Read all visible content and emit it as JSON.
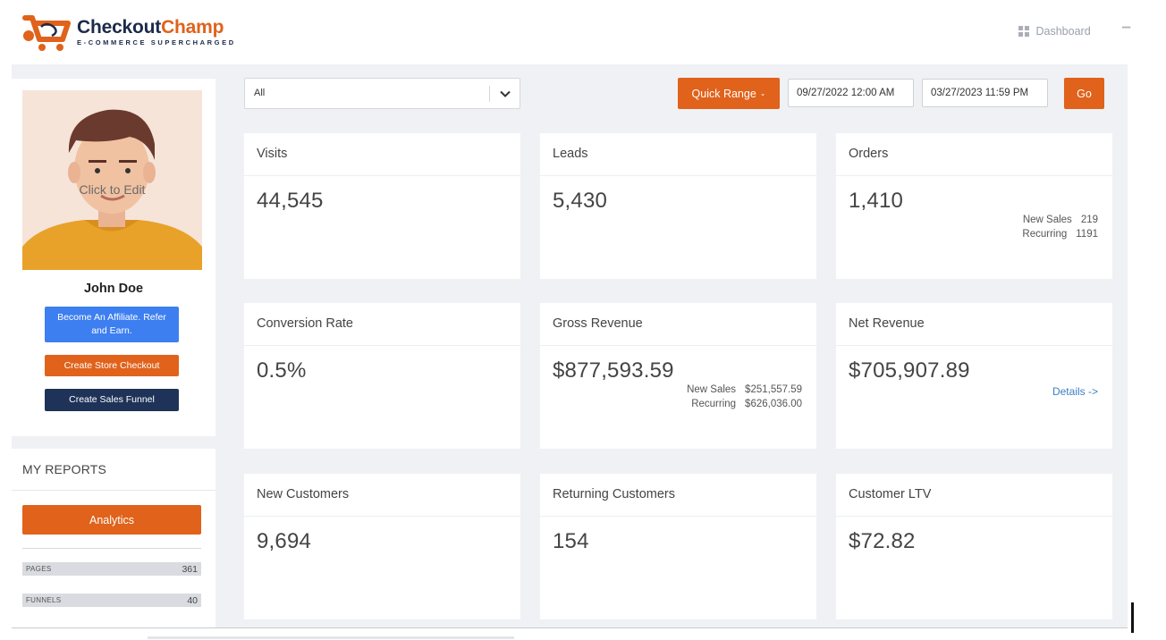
{
  "header": {
    "logo_name_part1": "Checkout",
    "logo_name_part2": "Champ",
    "logo_tagline": "E-COMMERCE SUPERCHARGED",
    "nav_dashboard": "Dashboard"
  },
  "profile": {
    "avatar_hint": "Click to Edit",
    "name": "John Doe",
    "buttons": {
      "affiliate": "Become An Affiliate. Refer and Earn.",
      "store_checkout": "Create Store Checkout",
      "sales_funnel": "Create Sales Funnel"
    }
  },
  "reports": {
    "title": "MY REPORTS",
    "analytics": "Analytics",
    "stats": [
      {
        "label": "PAGES",
        "value": "361"
      },
      {
        "label": "FUNNELS",
        "value": "40"
      }
    ]
  },
  "filters": {
    "select_value": "All",
    "quick_range": "Quick Range",
    "date_from": "09/27/2022 12:00 AM",
    "date_to": "03/27/2023 11:59 PM",
    "go": "Go"
  },
  "metrics": {
    "visits": {
      "title": "Visits",
      "value": "44,545"
    },
    "leads": {
      "title": "Leads",
      "value": "5,430"
    },
    "orders": {
      "title": "Orders",
      "value": "1,410",
      "sub": [
        {
          "k": "New Sales",
          "v": "219"
        },
        {
          "k": "Recurring",
          "v": "1191"
        }
      ]
    },
    "conversion": {
      "title": "Conversion Rate",
      "value": "0.5%"
    },
    "gross": {
      "title": "Gross Revenue",
      "value": "$877,593.59",
      "sub": [
        {
          "k": "New Sales",
          "v": "$251,557.59"
        },
        {
          "k": "Recurring",
          "v": "$626,036.00"
        }
      ]
    },
    "net": {
      "title": "Net Revenue",
      "value": "$705,907.89",
      "link": "Details ->"
    },
    "new_customers": {
      "title": "New Customers",
      "value": "9,694"
    },
    "returning": {
      "title": "Returning Customers",
      "value": "154"
    },
    "ltv": {
      "title": "Customer LTV",
      "value": "$72.82"
    }
  },
  "colors": {
    "brand_orange": "#e0621b",
    "brand_navy": "#1f3359",
    "affiliate_blue": "#3d7ff0",
    "link_blue": "#3b7fc4"
  }
}
